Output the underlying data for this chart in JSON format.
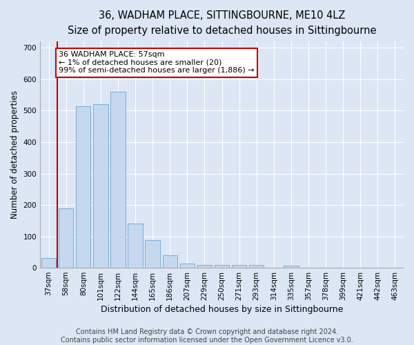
{
  "title": "36, WADHAM PLACE, SITTINGBOURNE, ME10 4LZ",
  "subtitle": "Size of property relative to detached houses in Sittingbourne",
  "xlabel": "Distribution of detached houses by size in Sittingbourne",
  "ylabel": "Number of detached properties",
  "categories": [
    "37sqm",
    "58sqm",
    "80sqm",
    "101sqm",
    "122sqm",
    "144sqm",
    "165sqm",
    "186sqm",
    "207sqm",
    "229sqm",
    "250sqm",
    "271sqm",
    "293sqm",
    "314sqm",
    "335sqm",
    "357sqm",
    "378sqm",
    "399sqm",
    "421sqm",
    "442sqm",
    "463sqm"
  ],
  "values": [
    30,
    190,
    515,
    520,
    560,
    140,
    88,
    40,
    14,
    10,
    10,
    10,
    10,
    0,
    7,
    0,
    0,
    0,
    0,
    0,
    0
  ],
  "bar_color": "#c5d8f0",
  "bar_edge_color": "#7aadd4",
  "vline_color": "#cc0000",
  "vline_x": 0.5,
  "annotation_text": "36 WADHAM PLACE: 57sqm\n← 1% of detached houses are smaller (20)\n99% of semi-detached houses are larger (1,886) →",
  "annotation_box_facecolor": "white",
  "annotation_box_edgecolor": "#cc0000",
  "ylim": [
    0,
    720
  ],
  "yticks": [
    0,
    100,
    200,
    300,
    400,
    500,
    600,
    700
  ],
  "grid_color": "white",
  "background_color": "#dce6f5",
  "title_fontsize": 10.5,
  "subtitle_fontsize": 9.5,
  "ylabel_fontsize": 8.5,
  "xlabel_fontsize": 9,
  "tick_fontsize": 7.5,
  "annotation_fontsize": 8,
  "footer_text": "Contains HM Land Registry data © Crown copyright and database right 2024.\nContains public sector information licensed under the Open Government Licence v3.0.",
  "footer_fontsize": 7
}
